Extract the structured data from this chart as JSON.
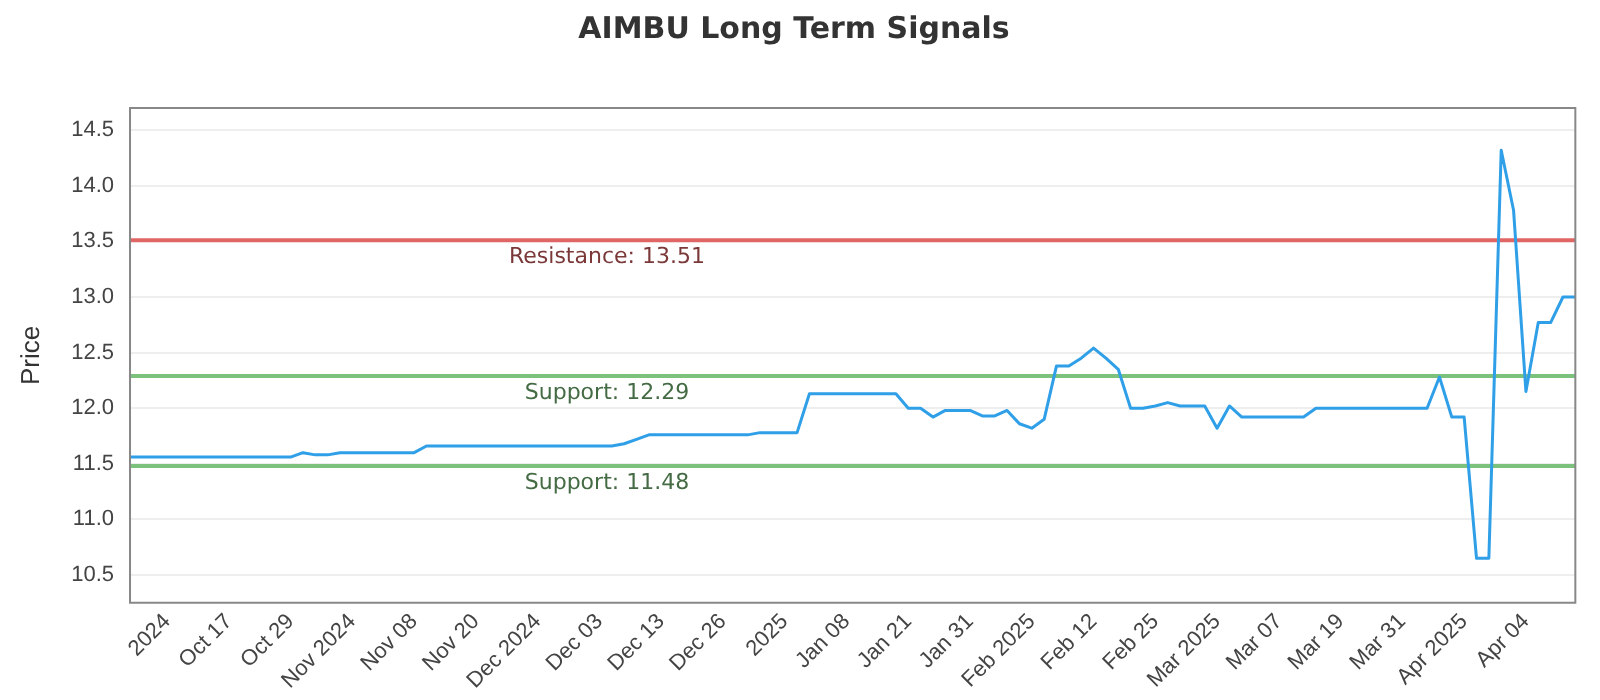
{
  "chart_data": {
    "type": "line",
    "title": "AIMBU Long Term Signals",
    "ylabel": "Price",
    "categories": [
      null,
      null,
      null,
      "2024",
      null,
      null,
      null,
      null,
      "Oct 17",
      null,
      null,
      null,
      null,
      "Oct 29",
      null,
      null,
      null,
      null,
      "Nov 2024",
      null,
      null,
      null,
      null,
      "Nov 08",
      null,
      null,
      null,
      null,
      "Nov 20",
      null,
      null,
      null,
      null,
      "Dec 2024",
      null,
      null,
      null,
      null,
      "Dec 03",
      null,
      null,
      null,
      null,
      "Dec 13",
      null,
      null,
      null,
      null,
      "Dec 26",
      null,
      null,
      null,
      null,
      "2025",
      null,
      null,
      null,
      null,
      "Jan 08",
      null,
      null,
      null,
      null,
      "Jan 21",
      null,
      null,
      null,
      null,
      "Jan 31",
      null,
      null,
      null,
      null,
      "Feb 2025",
      null,
      null,
      null,
      null,
      "Feb 12",
      null,
      null,
      null,
      null,
      "Feb 25",
      null,
      null,
      null,
      null,
      "Mar 2025",
      null,
      null,
      null,
      null,
      "Mar 07",
      null,
      null,
      null,
      null,
      "Mar 19",
      null,
      null,
      null,
      null,
      "Mar 31",
      null,
      null,
      null,
      null,
      "Apr 2025",
      null,
      null,
      null,
      null,
      "Apr 04",
      null,
      null,
      null,
      null
    ],
    "series": [
      {
        "color": "#2f9fe8",
        "values": [
          11.56,
          11.56,
          11.56,
          11.56,
          11.56,
          11.56,
          11.56,
          11.56,
          11.56,
          11.56,
          11.56,
          11.56,
          11.56,
          11.56,
          11.6,
          11.58,
          11.58,
          11.6,
          11.6,
          11.6,
          11.6,
          11.6,
          11.6,
          11.6,
          11.66,
          11.66,
          11.66,
          11.66,
          11.66,
          11.66,
          11.66,
          11.66,
          11.66,
          11.66,
          11.66,
          11.66,
          11.66,
          11.66,
          11.66,
          11.66,
          11.68,
          11.72,
          11.76,
          11.76,
          11.76,
          11.76,
          11.76,
          11.76,
          11.76,
          11.76,
          11.76,
          11.78,
          11.78,
          11.78,
          11.78,
          12.13,
          12.13,
          12.13,
          12.13,
          12.13,
          12.13,
          12.13,
          12.13,
          12.0,
          12.0,
          11.92,
          11.98,
          11.98,
          11.98,
          11.93,
          11.93,
          11.98,
          11.86,
          11.82,
          11.9,
          12.38,
          12.38,
          12.45,
          12.54,
          12.45,
          12.35,
          12.0,
          12.0,
          12.02,
          12.05,
          12.02,
          12.02,
          12.02,
          11.82,
          12.02,
          11.92,
          11.92,
          11.92,
          11.92,
          11.92,
          11.92,
          12.0,
          12.0,
          12.0,
          12.0,
          12.0,
          12.0,
          12.0,
          12.0,
          12.0,
          12.0,
          12.28,
          11.92,
          11.92,
          10.65,
          10.65,
          14.32,
          13.78,
          12.15,
          12.77,
          12.77,
          13.0,
          13.0
        ]
      }
    ],
    "ylim": [
      10.25,
      14.7
    ],
    "yticks": [
      {
        "value": 10.5,
        "label": "10.5"
      },
      {
        "value": 11,
        "label": "11.0"
      },
      {
        "value": 11.5,
        "label": "11.5"
      },
      {
        "value": 12,
        "label": "12.0"
      },
      {
        "value": 12.5,
        "label": "12.5"
      },
      {
        "value": 13,
        "label": "13.0"
      },
      {
        "value": 13.5,
        "label": "13.5"
      },
      {
        "value": 14,
        "label": "14.0"
      },
      {
        "value": 14.5,
        "label": "14.5"
      }
    ],
    "ref_lines": [
      {
        "axis": "y",
        "value": 13.51,
        "label": "Resistance: 13.51",
        "color": "#e06666"
      },
      {
        "axis": "y",
        "value": 12.29,
        "label": "Support: 12.29",
        "color": "#7cc27c"
      },
      {
        "axis": "y",
        "value": 11.48,
        "label": "Support: 11.48",
        "color": "#7cc27c"
      }
    ],
    "grid": "y",
    "legend": false,
    "marker": "none",
    "line_style": "solid"
  }
}
